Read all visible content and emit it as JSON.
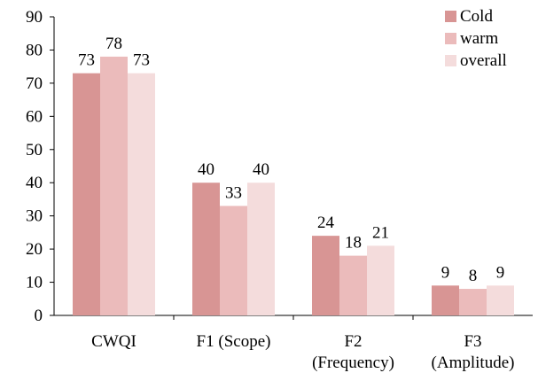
{
  "chart_data": {
    "type": "bar",
    "categories": [
      [
        "CWQI"
      ],
      [
        "F1 (Scope)"
      ],
      [
        "F2",
        "(Frequency)"
      ],
      [
        "F3",
        "(Amplitude)"
      ]
    ],
    "series": [
      {
        "name": "Cold",
        "values": [
          73,
          40,
          24,
          9
        ],
        "color": "#d89594"
      },
      {
        "name": "warm",
        "values": [
          78,
          33,
          18,
          8
        ],
        "color": "#ebbbbb"
      },
      {
        "name": "overall",
        "values": [
          73,
          40,
          21,
          9
        ],
        "color": "#f4dcdc"
      }
    ],
    "ylim": [
      0,
      90
    ],
    "yticks": [
      0,
      10,
      20,
      30,
      40,
      50,
      60,
      70,
      80,
      90
    ],
    "grid": false,
    "legend": "top-right",
    "data_labels": true
  }
}
